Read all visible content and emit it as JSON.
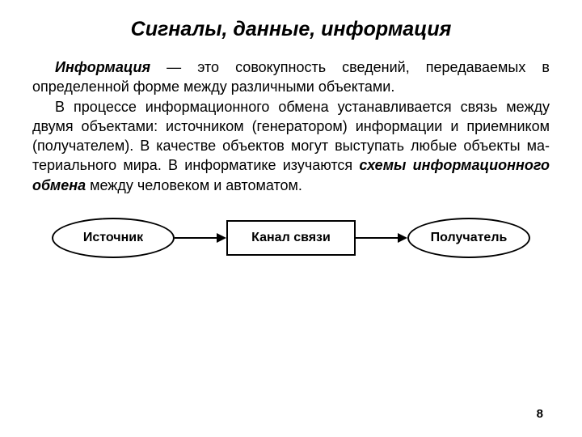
{
  "title": "Сигналы, данные, информация",
  "paragraph": {
    "part1_bold": "Информация",
    "part2": " — это совокупность сведений, переда­ваемых в определенной форме между различными объектами.",
    "part3": "В процессе информационного обмена устанавлива­ется связь между двумя объектами: источником (гене­ратором) информации и приемником (получателем). В качестве объектов могут выступать любые объекты ма­териального мира. В информатике изучаются ",
    "part4_bold": "схемы информационного обмена",
    "part5": " между человеком и авто­матом."
  },
  "diagram": {
    "type": "flowchart",
    "nodes": [
      {
        "id": "source",
        "shape": "ellipse",
        "label": "Источник"
      },
      {
        "id": "channel",
        "shape": "rect",
        "label": "Канал связи"
      },
      {
        "id": "receiver",
        "shape": "ellipse",
        "label": "Получатель"
      }
    ],
    "edges": [
      {
        "from": "source",
        "to": "channel"
      },
      {
        "from": "channel",
        "to": "receiver"
      }
    ],
    "colors": {
      "stroke": "#000000",
      "fill": "#ffffff",
      "text": "#000000"
    },
    "stroke_width": 2,
    "font_size": 16,
    "font_weight": "bold"
  },
  "page_number": "8"
}
